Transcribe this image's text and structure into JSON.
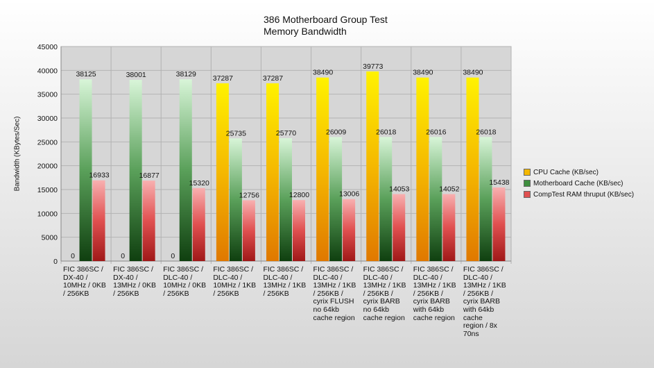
{
  "chart_data": {
    "type": "bar",
    "title": "386 Motherboard Group Test",
    "subtitle": "Memory Bandwidth",
    "xlabel": "",
    "ylabel": "Bandwidth (KBytes/Sec)",
    "ylim": [
      0,
      45000
    ],
    "yticks": [
      0,
      5000,
      10000,
      15000,
      20000,
      25000,
      30000,
      35000,
      40000,
      45000
    ],
    "grid": true,
    "legend_position": "right",
    "categories": [
      [
        "FIC 386SC /",
        "DX-40 /",
        "10MHz / 0KB",
        "/ 256KB"
      ],
      [
        "FIC 386SC /",
        "DX-40 /",
        "13MHz / 0KB",
        "/ 256KB"
      ],
      [
        "FIC 386SC /",
        "DLC-40 /",
        "10MHz / 0KB",
        "/ 256KB"
      ],
      [
        "FIC 386SC /",
        "DLC-40 /",
        "10MHz / 1KB",
        "/ 256KB"
      ],
      [
        "FIC 386SC /",
        "DLC-40 /",
        "13MHz / 1KB",
        "/ 256KB"
      ],
      [
        "FIC 386SC /",
        "DLC-40 /",
        "13MHz / 1KB",
        "/ 256KB /",
        "cyrix FLUSH",
        "no 64kb",
        "cache region"
      ],
      [
        "FIC 386SC /",
        "DLC-40 /",
        "13MHz / 1KB",
        "/ 256KB /",
        "cyrix BARB",
        "no 64kb",
        "cache region"
      ],
      [
        "FIC 386SC /",
        "DLC-40 /",
        "13MHz / 1KB",
        "/ 256KB /",
        "cyrix BARB",
        "with 64kb",
        "cache region"
      ],
      [
        "FIC 386SC /",
        "DLC-40 /",
        "13MHz / 1KB",
        "/ 256KB /",
        "cyrix BARB",
        "with 64kb",
        "cache",
        "region / 8x",
        "70ns"
      ]
    ],
    "series": [
      {
        "name": "CPU Cache (KB/sec)",
        "color": "#f5b800",
        "values": [
          0,
          0,
          0,
          37287,
          37287,
          38490,
          39773,
          38490,
          38490
        ]
      },
      {
        "name": "Motherboard Cache (KB/sec)",
        "color": "#3f8f3f",
        "values": [
          38125,
          38001,
          38129,
          25735,
          25770,
          26009,
          26018,
          26016,
          26018
        ]
      },
      {
        "name": "CompTest RAM thruput (KB/sec)",
        "color": "#e05050",
        "values": [
          16933,
          16877,
          15320,
          12756,
          12800,
          13006,
          14053,
          14052,
          15438
        ]
      }
    ]
  }
}
